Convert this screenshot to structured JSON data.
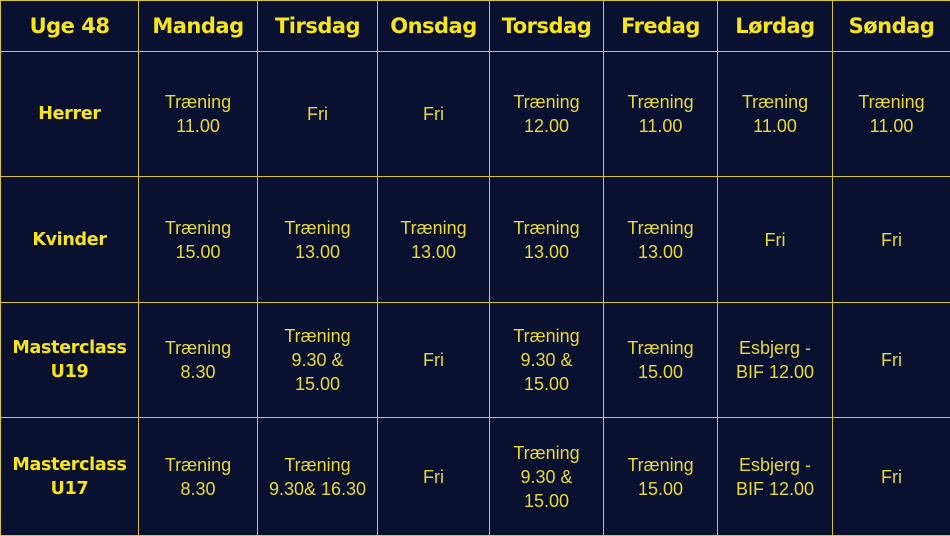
{
  "header": [
    "Uge 48",
    "Mandag",
    "Tirsdag",
    "Onsdag",
    "Torsdag",
    "Fredag",
    "Lørdag",
    "Søndag"
  ],
  "rows": [
    {
      "label": "Herrer",
      "cells": [
        "Træning\n11.00",
        "Fri",
        "Fri",
        "Træning\n12.00",
        "Træning\n11.00",
        "Træning\n11.00",
        "Træning\n11.00"
      ]
    },
    {
      "label": "Kvinder",
      "cells": [
        "Træning\n15.00",
        "Træning\n13.00",
        "Træning\n13.00",
        "Træning\n13.00",
        "Træning\n13.00",
        "Fri",
        "Fri"
      ]
    },
    {
      "label": "Masterclass\nU19",
      "cells": [
        "Træning\n8.30",
        "Træning\n9.30 &\n15.00",
        "Fri",
        "Træning\n9.30 &\n15.00",
        "Træning\n15.00",
        "Esbjerg -\nBIF 12.00",
        "Fri"
      ]
    },
    {
      "label": "Masterclass\nU17",
      "cells": [
        "Træning\n8.30",
        "Træning\n9.30& 16.30",
        "Fri",
        "Træning\n9.30 &\n15.00",
        "Træning\n15.00",
        "Esbjerg -\nBIF 12.00",
        "Fri"
      ]
    }
  ],
  "colors": {
    "background": "#0a1030",
    "accent": "#f7e51c",
    "grid": "#d6c53a"
  }
}
